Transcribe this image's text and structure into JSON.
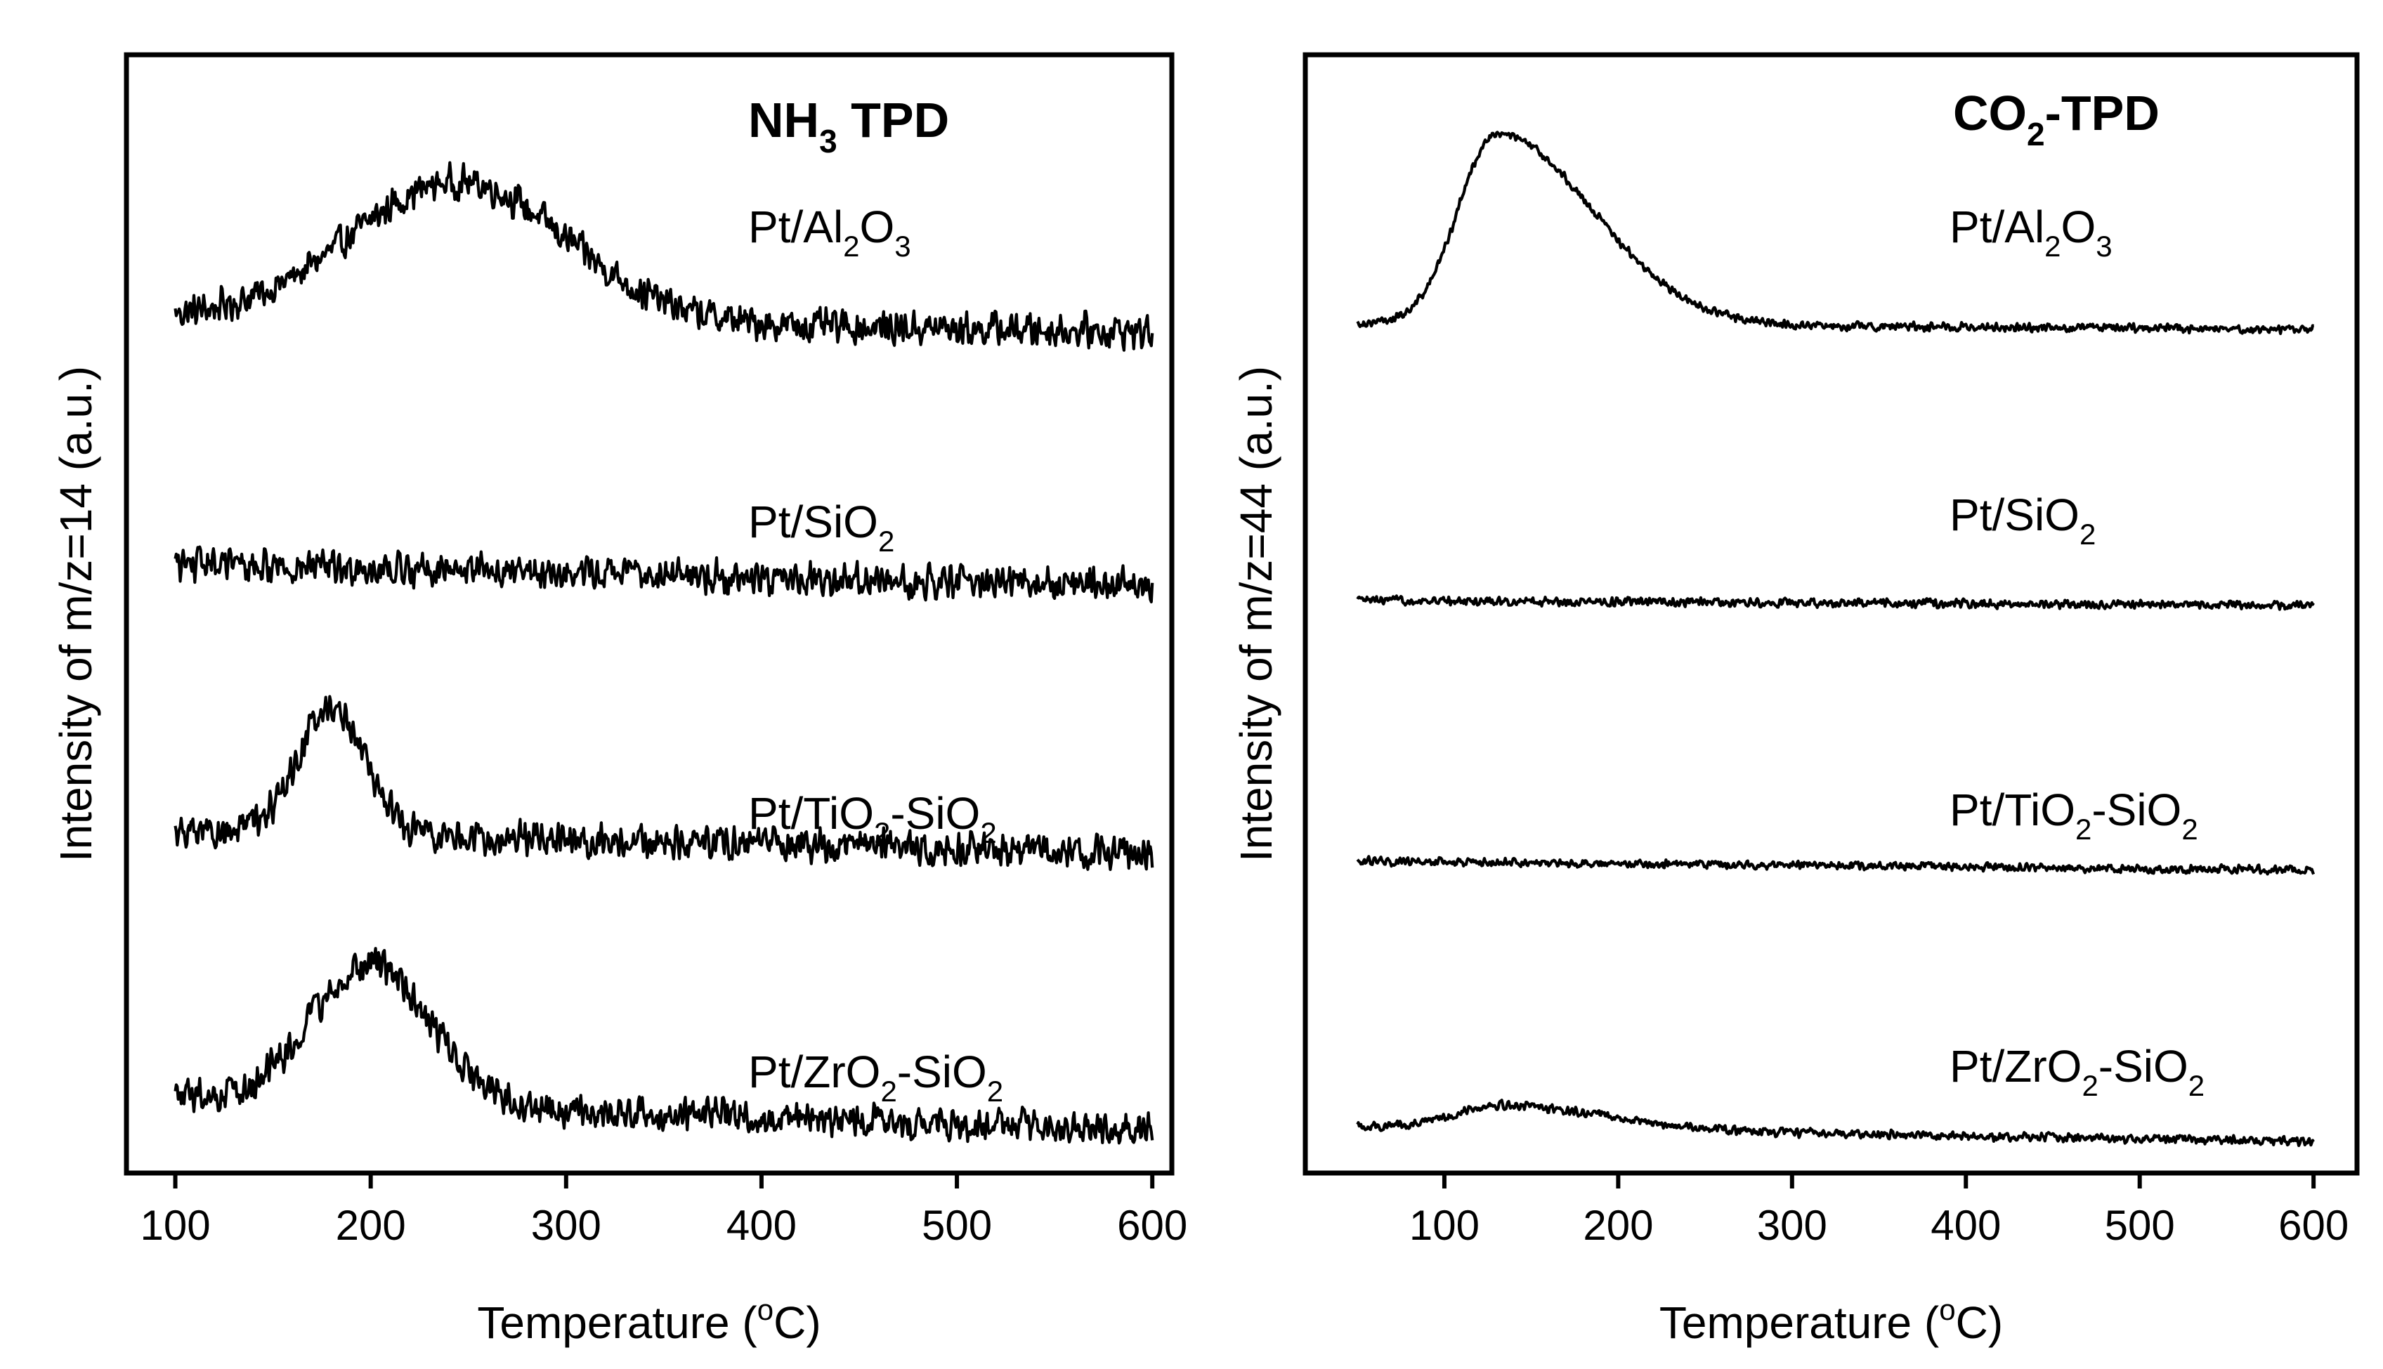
{
  "chart_data": [
    {
      "type": "line",
      "title_main": "NH",
      "title_sub": "3",
      "title_tail": " TPD",
      "xlabel_main": "Temperature (",
      "xlabel_sup": "o",
      "xlabel_tail": "C)",
      "ylabel": "Intensity of m/z=14 (a.u.)",
      "xlim": [
        75,
        610
      ],
      "x_ticks": [
        100,
        200,
        300,
        400,
        500,
        600
      ],
      "x_tick_labels": [
        "100",
        "200",
        "300",
        "400",
        "500",
        "600"
      ],
      "ylim": [
        0,
        100
      ],
      "y_ticks_shown": false,
      "x_range_data": [
        100,
        600
      ],
      "noise": 1.8,
      "series": [
        {
          "name": "Pt/Al2O3",
          "label_parts": [
            {
              "t": "Pt/Al"
            },
            {
              "s": "2"
            },
            {
              "t": "O"
            },
            {
              "s": "3"
            }
          ],
          "baseline": 76.5,
          "slope": -0.0025,
          "peaks": [
            {
              "center": 245,
              "height": 12.5,
              "sigma": 55
            }
          ]
        },
        {
          "name": "Pt/SiO2",
          "label_parts": [
            {
              "t": "Pt/SiO"
            },
            {
              "s": "2"
            }
          ],
          "baseline": 54.5,
          "slope": -0.004,
          "peaks": []
        },
        {
          "name": "Pt/TiO2-SiO2",
          "label_parts": [
            {
              "t": "Pt/TiO"
            },
            {
              "s": "2"
            },
            {
              "t": "-SiO"
            },
            {
              "s": "2"
            }
          ],
          "baseline": 30.6,
          "slope": -0.004,
          "peaks": [
            {
              "center": 180,
              "height": 11.5,
              "sigma": 17
            }
          ]
        },
        {
          "name": "Pt/ZrO2-SiO2",
          "label_parts": [
            {
              "t": "Pt/ZrO"
            },
            {
              "s": "2"
            },
            {
              "t": "-SiO"
            },
            {
              "s": "2"
            }
          ],
          "baseline": 6.8,
          "slope": -0.006,
          "peaks": [
            {
              "center": 200,
              "height": 12.5,
              "sigma": 30
            }
          ]
        }
      ]
    },
    {
      "type": "line",
      "title_main": "CO",
      "title_sub": "2",
      "title_tail": "-TPD",
      "xlabel_main": "Temperature (",
      "xlabel_sup": "o",
      "xlabel_tail": "C)",
      "ylabel": "Intensity of m/z=44 (a.u.)",
      "xlim": [
        20,
        625
      ],
      "x_ticks": [
        100,
        200,
        300,
        400,
        500,
        600
      ],
      "x_tick_labels": [
        "100",
        "200",
        "300",
        "400",
        "500",
        "600"
      ],
      "ylim": [
        0,
        100
      ],
      "y_ticks_shown": false,
      "x_range_data": [
        50,
        600
      ],
      "noise": 0.45,
      "series": [
        {
          "name": "Pt/Al2O3",
          "label_parts": [
            {
              "t": "Pt/Al"
            },
            {
              "s": "2"
            },
            {
              "t": "O"
            },
            {
              "s": "3"
            }
          ],
          "baseline": 76.0,
          "slope": -0.001,
          "peaks": [
            {
              "center": 130,
              "height": 17.0,
              "sigma_left": 22,
              "sigma_right": 55
            }
          ]
        },
        {
          "name": "Pt/SiO2",
          "label_parts": [
            {
              "t": "Pt/SiO"
            },
            {
              "s": "2"
            }
          ],
          "baseline": 51.2,
          "slope": -0.0008,
          "peaks": []
        },
        {
          "name": "Pt/TiO2-SiO2",
          "label_parts": [
            {
              "t": "Pt/TiO"
            },
            {
              "s": "2"
            },
            {
              "t": "-SiO"
            },
            {
              "s": "2"
            }
          ],
          "baseline": 27.9,
          "slope": -0.0015,
          "peaks": []
        },
        {
          "name": "Pt/ZrO2-SiO2",
          "label_parts": [
            {
              "t": "Pt/ZrO"
            },
            {
              "s": "2"
            },
            {
              "t": "-SiO"
            },
            {
              "s": "2"
            }
          ],
          "baseline": 4.2,
          "slope": -0.0025,
          "peaks": [
            {
              "center": 132,
              "height": 2.1,
              "sigma_left": 25,
              "sigma_right": 60
            }
          ]
        }
      ]
    }
  ]
}
